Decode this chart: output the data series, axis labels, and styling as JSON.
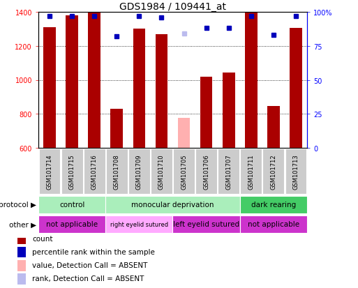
{
  "title": "GDS1984 / 109441_at",
  "samples": [
    "GSM101714",
    "GSM101715",
    "GSM101716",
    "GSM101708",
    "GSM101709",
    "GSM101710",
    "GSM101705",
    "GSM101706",
    "GSM101707",
    "GSM101711",
    "GSM101712",
    "GSM101713"
  ],
  "bar_values": [
    1310,
    1380,
    1395,
    830,
    1300,
    1270,
    775,
    1020,
    1045,
    1395,
    845,
    1305
  ],
  "bar_absent": [
    false,
    false,
    false,
    false,
    false,
    false,
    true,
    false,
    false,
    false,
    false,
    false
  ],
  "percentile_values": [
    97,
    97,
    97,
    82,
    97,
    96,
    84,
    88,
    88,
    97,
    83,
    97
  ],
  "percentile_absent": [
    false,
    false,
    false,
    false,
    false,
    false,
    true,
    false,
    false,
    false,
    false,
    false
  ],
  "ylim_left": [
    600,
    1400
  ],
  "ylim_right": [
    0,
    100
  ],
  "yticks_left": [
    600,
    800,
    1000,
    1200,
    1400
  ],
  "yticks_right": [
    0,
    25,
    50,
    75,
    100
  ],
  "ytick_right_labels": [
    "0",
    "25",
    "50",
    "75",
    "100%"
  ],
  "bar_color": "#AA0000",
  "bar_absent_color": "#FFB0B0",
  "dot_color": "#0000BB",
  "dot_absent_color": "#BBBBEE",
  "protocol_groups": [
    {
      "label": "control",
      "start": 0,
      "end": 3,
      "color": "#AAEEBB"
    },
    {
      "label": "monocular deprivation",
      "start": 3,
      "end": 9,
      "color": "#AAEEBB"
    },
    {
      "label": "dark rearing",
      "start": 9,
      "end": 12,
      "color": "#44CC66"
    }
  ],
  "other_groups": [
    {
      "label": "not applicable",
      "start": 0,
      "end": 3,
      "color": "#CC33CC"
    },
    {
      "label": "right eyelid sutured",
      "start": 3,
      "end": 6,
      "color": "#FFAAFF"
    },
    {
      "label": "left eyelid sutured",
      "start": 6,
      "end": 9,
      "color": "#CC33CC"
    },
    {
      "label": "not applicable",
      "start": 9,
      "end": 12,
      "color": "#CC33CC"
    }
  ],
  "protocol_label": "protocol",
  "other_label": "other",
  "xtick_bg": "#CCCCCC",
  "legend_items": [
    {
      "label": "count",
      "color": "#AA0000"
    },
    {
      "label": "percentile rank within the sample",
      "color": "#0000BB"
    },
    {
      "label": "value, Detection Call = ABSENT",
      "color": "#FFB0B0"
    },
    {
      "label": "rank, Detection Call = ABSENT",
      "color": "#BBBBEE"
    }
  ]
}
